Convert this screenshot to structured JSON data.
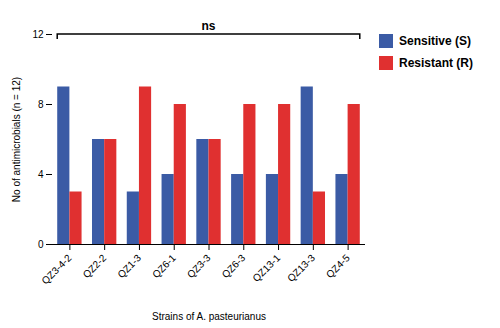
{
  "chart_data": {
    "type": "bar",
    "categories": [
      "QZ3-4-2",
      "QZ2-2",
      "QZ1-3",
      "QZ6-1",
      "QZ3-3",
      "QZ6-3",
      "QZ13-1",
      "QZ13-3",
      "QZ4-5"
    ],
    "series": [
      {
        "name": "Sensitive (S)",
        "color": "#3B5BA5",
        "values": [
          9,
          6,
          3,
          4,
          6,
          4,
          4,
          9,
          4
        ]
      },
      {
        "name": "Resistant (R)",
        "color": "#E03030",
        "values": [
          3,
          6,
          9,
          8,
          6,
          8,
          8,
          3,
          8
        ]
      }
    ],
    "xlabel": "Strains of A. pasteurianus",
    "ylabel": "No of antimicrobials (n = 12)",
    "annotation": "ns",
    "ylim": [
      0,
      12
    ],
    "yticks": [
      0,
      4,
      8,
      12
    ],
    "grid": false,
    "legend": "right"
  }
}
